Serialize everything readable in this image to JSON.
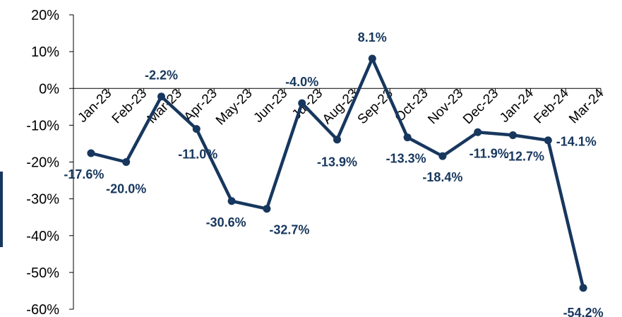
{
  "chart_data": {
    "type": "line",
    "categories": [
      "Jan-23",
      "Feb-23",
      "Mar-23",
      "Apr-23",
      "May-23",
      "Jun-23",
      "Jul-23",
      "Aug-23",
      "Sep-23",
      "Oct-23",
      "Nov-23",
      "Dec-23",
      "Jan-24",
      "Feb-24",
      "Mar-24"
    ],
    "series": [
      {
        "values": [
          -17.6,
          -20.0,
          -2.2,
          -11.0,
          -30.6,
          -32.7,
          -4.0,
          -13.9,
          8.1,
          -13.3,
          -18.4,
          -11.9,
          -12.7,
          -14.1,
          -54.2
        ],
        "labels": [
          "-17.6%",
          "-20.0%",
          "-2.2%",
          "-11.0%",
          "-30.6%",
          "-32.7%",
          "-4.0%",
          "-13.9%",
          "8.1%",
          "-13.3%",
          "-18.4%",
          "-11.9%",
          "-12.7%",
          "-14.1%",
          "-54.2%"
        ]
      }
    ],
    "y_ticks": [
      "20%",
      "10%",
      "0%",
      "-10%",
      "-20%",
      "-30%",
      "-40%",
      "-50%",
      "-60%"
    ],
    "ylim": [
      -60,
      20
    ],
    "xlabel": "",
    "ylabel": "",
    "title": "",
    "grid": false,
    "legend": "none",
    "colors": {
      "line": "#17375E",
      "label": "#17375E",
      "axis": "#000000"
    }
  }
}
